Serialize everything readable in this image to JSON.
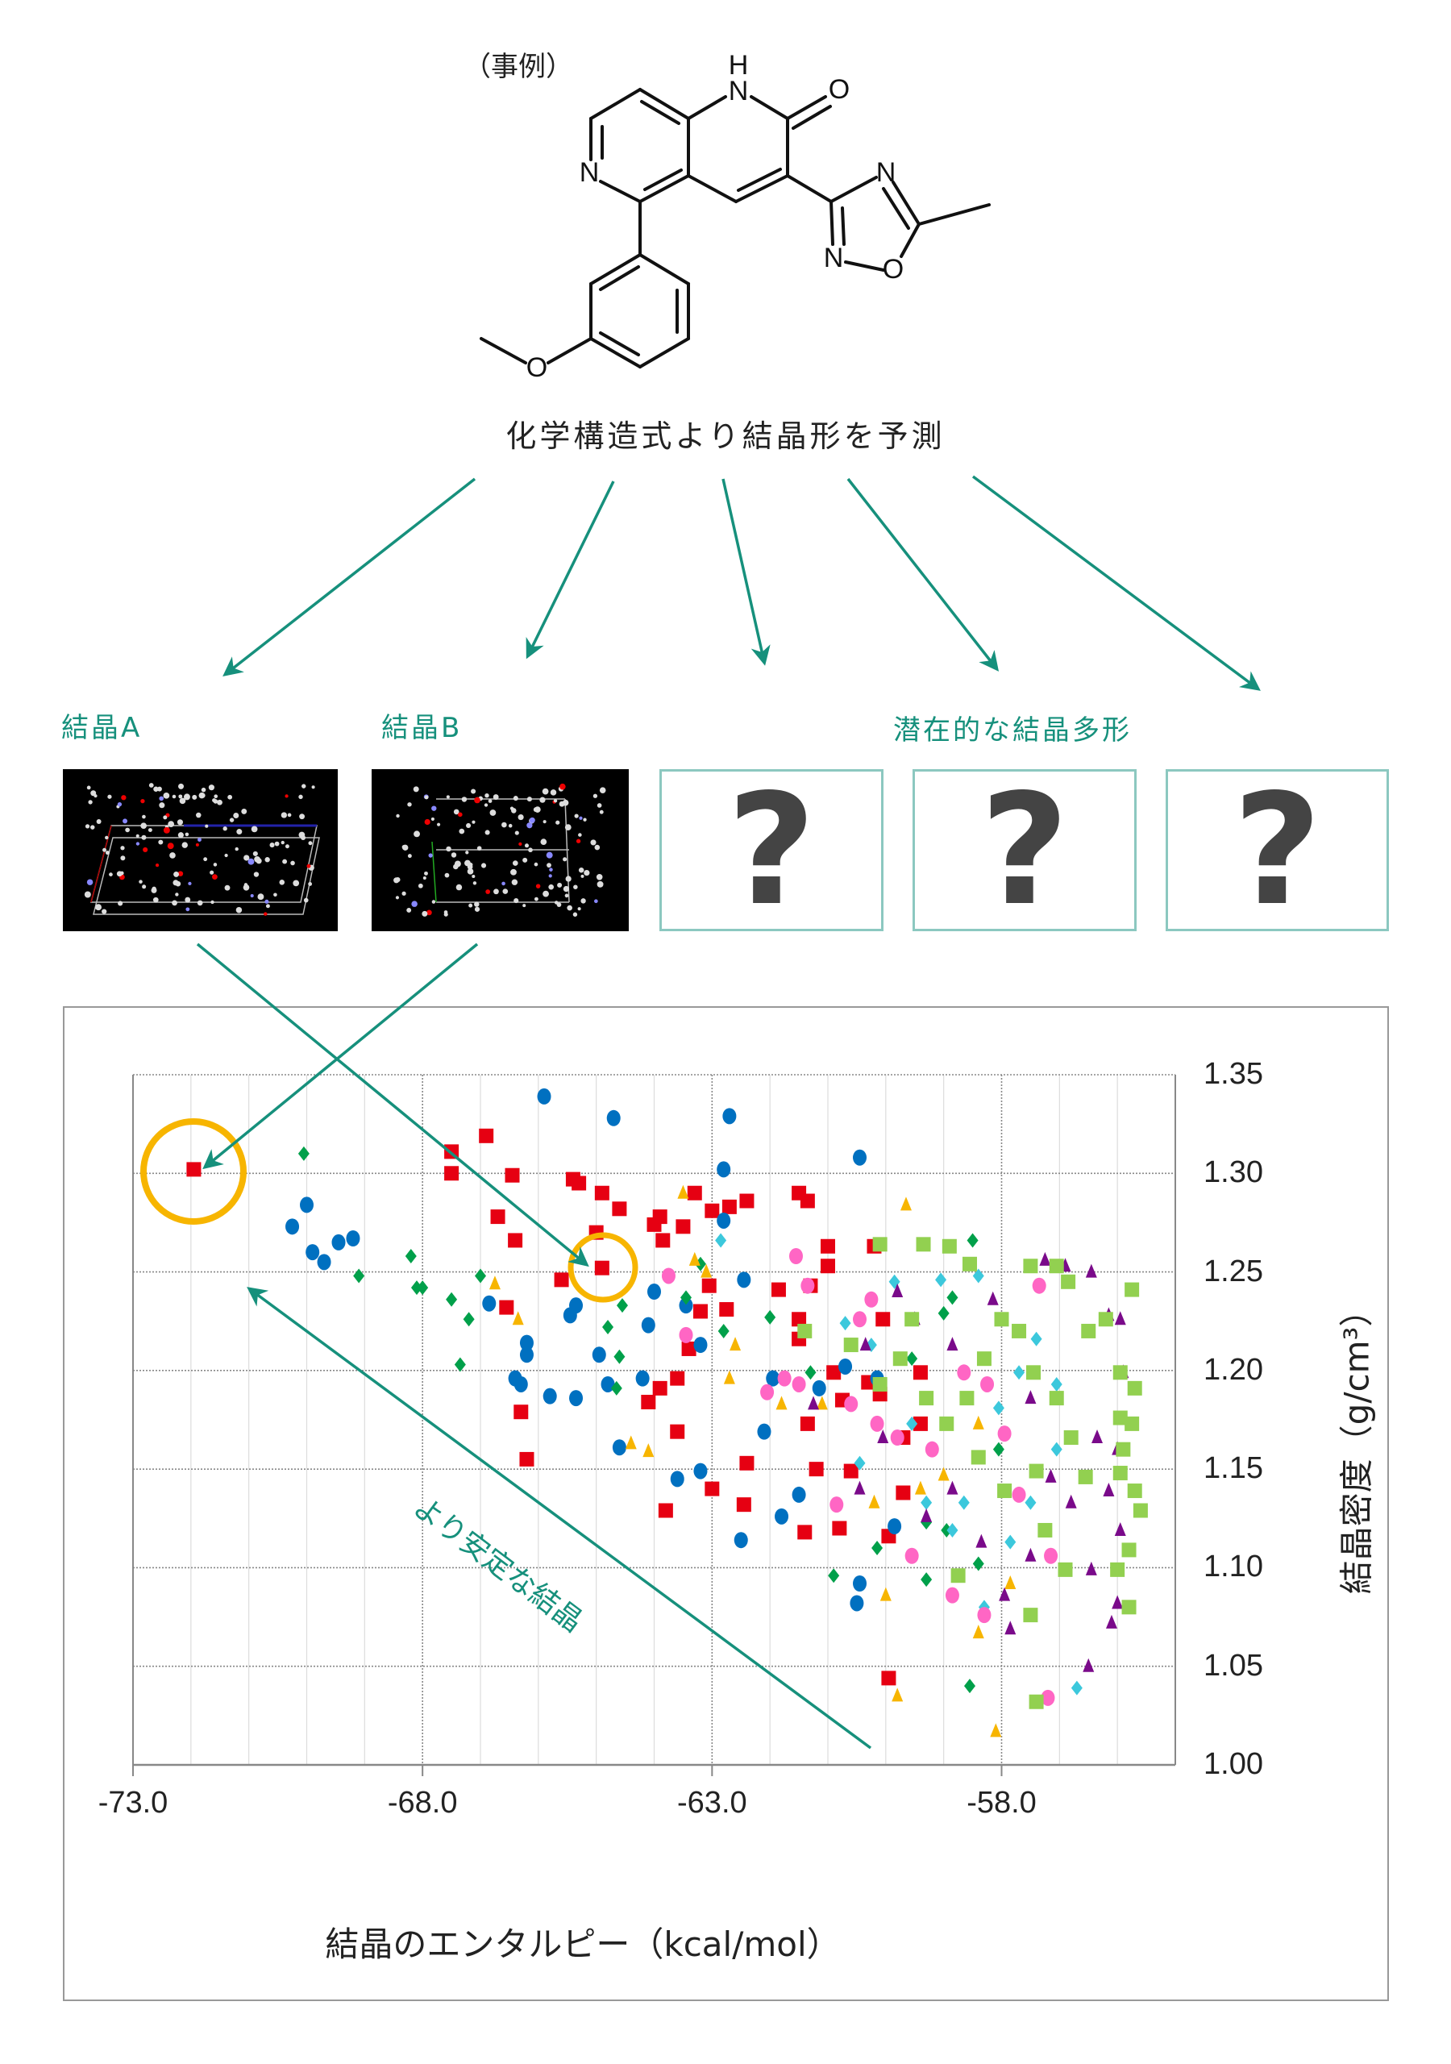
{
  "header": {
    "example_label": "（事例）",
    "caption": "化学構造式より結晶形を予測"
  },
  "structure": {
    "atoms": {
      "nh_h": "H",
      "nh_n": "N",
      "carbonyl_o": "O",
      "ring_n": "N",
      "methoxy_o": "O",
      "oxadiazole_n4": "N",
      "oxadiazole_n2": "N",
      "oxadiazole_o": "O"
    }
  },
  "crystals": {
    "crystal_a_label": "結晶A",
    "crystal_b_label": "結晶B",
    "potential_label": "潜在的な結晶多形",
    "unknown_mark": "?"
  },
  "colors": {
    "accent_teal": "#16907c",
    "highlight_circle": "#f7b500",
    "box_border": "#8cc8c0"
  },
  "annotation": {
    "stable_arrow_label": "より安定な結晶"
  },
  "chart_data": {
    "type": "scatter",
    "xlabel": "結晶のエンタルピー（kcal/mol）",
    "ylabel": "結晶密度（g/cm³）",
    "xlim": [
      -73.0,
      -55.0
    ],
    "ylim": [
      1.0,
      1.35
    ],
    "xticks": [
      "-73.0",
      "-68.0",
      "-63.0",
      "-58.0"
    ],
    "yticks": [
      "1.35",
      "1.30",
      "1.25",
      "1.20",
      "1.15",
      "1.10",
      "1.05",
      "1.00"
    ],
    "y_axis_side": "right",
    "grid": true,
    "legend": "none",
    "highlighted_points": [
      [
        -72.0,
        1.3
      ],
      [
        -64.9,
        1.252
      ]
    ],
    "series": [
      {
        "marker": "square",
        "color": "#e60012",
        "points": [
          [
            -71.95,
            1.302
          ],
          [
            -67.5,
            1.311
          ],
          [
            -66.9,
            1.319
          ],
          [
            -67.5,
            1.3
          ],
          [
            -66.45,
            1.299
          ],
          [
            -66.7,
            1.278
          ],
          [
            -66.4,
            1.266
          ],
          [
            -66.55,
            1.232
          ],
          [
            -65.4,
            1.297
          ],
          [
            -65.3,
            1.295
          ],
          [
            -64.9,
            1.29
          ],
          [
            -64.6,
            1.282
          ],
          [
            -64.9,
            1.252
          ],
          [
            -65.6,
            1.246
          ],
          [
            -65.0,
            1.27
          ],
          [
            -63.9,
            1.278
          ],
          [
            -63.85,
            1.266
          ],
          [
            -64.0,
            1.274
          ],
          [
            -63.5,
            1.273
          ],
          [
            -63.3,
            1.29
          ],
          [
            -63.0,
            1.281
          ],
          [
            -62.4,
            1.286
          ],
          [
            -62.7,
            1.283
          ],
          [
            -61.5,
            1.29
          ],
          [
            -61.35,
            1.286
          ],
          [
            -61.0,
            1.263
          ],
          [
            -61.0,
            1.253
          ],
          [
            -61.3,
            1.243
          ],
          [
            -63.05,
            1.243
          ],
          [
            -63.2,
            1.23
          ],
          [
            -62.75,
            1.231
          ],
          [
            -63.6,
            1.196
          ],
          [
            -63.9,
            1.191
          ],
          [
            -63.6,
            1.169
          ],
          [
            -63.4,
            1.211
          ],
          [
            -64.1,
            1.184
          ],
          [
            -66.3,
            1.179
          ],
          [
            -66.2,
            1.155
          ],
          [
            -63.8,
            1.129
          ],
          [
            -63.0,
            1.14
          ],
          [
            -62.45,
            1.132
          ],
          [
            -62.4,
            1.153
          ],
          [
            -61.85,
            1.241
          ],
          [
            -61.5,
            1.226
          ],
          [
            -61.5,
            1.216
          ],
          [
            -60.9,
            1.199
          ],
          [
            -60.6,
            1.149
          ],
          [
            -61.2,
            1.15
          ],
          [
            -61.4,
            1.118
          ],
          [
            -60.8,
            1.12
          ],
          [
            -60.1,
            1.188
          ],
          [
            -59.95,
            1.044
          ],
          [
            -59.7,
            1.138
          ],
          [
            -59.7,
            1.166
          ],
          [
            -60.3,
            1.194
          ],
          [
            -60.75,
            1.185
          ],
          [
            -60.05,
            1.226
          ],
          [
            -60.2,
            1.263
          ],
          [
            -59.4,
            1.173
          ],
          [
            -59.95,
            1.116
          ],
          [
            -59.4,
            1.199
          ],
          [
            -61.35,
            1.173
          ]
        ]
      },
      {
        "marker": "circle",
        "color": "#0070c0",
        "points": [
          [
            -65.9,
            1.339
          ],
          [
            -64.7,
            1.328
          ],
          [
            -62.7,
            1.329
          ],
          [
            -62.8,
            1.302
          ],
          [
            -60.45,
            1.308
          ],
          [
            -70.0,
            1.284
          ],
          [
            -70.25,
            1.273
          ],
          [
            -69.9,
            1.26
          ],
          [
            -69.7,
            1.255
          ],
          [
            -69.45,
            1.265
          ],
          [
            -69.2,
            1.267
          ],
          [
            -66.85,
            1.234
          ],
          [
            -66.2,
            1.214
          ],
          [
            -66.2,
            1.208
          ],
          [
            -66.4,
            1.196
          ],
          [
            -66.3,
            1.193
          ],
          [
            -65.8,
            1.187
          ],
          [
            -65.35,
            1.186
          ],
          [
            -64.8,
            1.193
          ],
          [
            -65.35,
            1.233
          ],
          [
            -65.45,
            1.228
          ],
          [
            -64.95,
            1.208
          ],
          [
            -64.1,
            1.223
          ],
          [
            -63.45,
            1.233
          ],
          [
            -63.2,
            1.213
          ],
          [
            -64.2,
            1.196
          ],
          [
            -64.6,
            1.161
          ],
          [
            -63.6,
            1.145
          ],
          [
            -63.2,
            1.149
          ],
          [
            -62.5,
            1.114
          ],
          [
            -62.1,
            1.169
          ],
          [
            -61.5,
            1.137
          ],
          [
            -61.8,
            1.126
          ],
          [
            -60.45,
            1.092
          ],
          [
            -60.5,
            1.082
          ],
          [
            -59.85,
            1.121
          ],
          [
            -60.15,
            1.196
          ],
          [
            -61.95,
            1.196
          ],
          [
            -64.0,
            1.24
          ],
          [
            -62.45,
            1.246
          ],
          [
            -62.8,
            1.276
          ],
          [
            -60.7,
            1.202
          ],
          [
            -61.15,
            1.191
          ]
        ]
      },
      {
        "marker": "diamond",
        "color": "#00a04a",
        "points": [
          [
            -70.05,
            1.31
          ],
          [
            -69.1,
            1.248
          ],
          [
            -68.2,
            1.258
          ],
          [
            -68.1,
            1.242
          ],
          [
            -68.0,
            1.242
          ],
          [
            -67.5,
            1.236
          ],
          [
            -67.2,
            1.226
          ],
          [
            -67.0,
            1.248
          ],
          [
            -67.35,
            1.203
          ],
          [
            -64.8,
            1.222
          ],
          [
            -64.55,
            1.233
          ],
          [
            -64.65,
            1.191
          ],
          [
            -64.6,
            1.207
          ],
          [
            -63.2,
            1.254
          ],
          [
            -63.45,
            1.237
          ],
          [
            -62.0,
            1.227
          ],
          [
            -60.9,
            1.096
          ],
          [
            -60.15,
            1.11
          ],
          [
            -59.3,
            1.094
          ],
          [
            -59.55,
            1.206
          ],
          [
            -59.0,
            1.229
          ],
          [
            -58.5,
            1.266
          ],
          [
            -58.85,
            1.237
          ],
          [
            -58.55,
            1.04
          ],
          [
            -58.05,
            1.16
          ],
          [
            -59.3,
            1.123
          ],
          [
            -61.3,
            1.199
          ],
          [
            -62.8,
            1.22
          ],
          [
            -58.95,
            1.119
          ],
          [
            -58.4,
            1.102
          ]
        ]
      },
      {
        "marker": "triangle",
        "color": "#f7b500",
        "points": [
          [
            -66.75,
            1.244
          ],
          [
            -66.35,
            1.226
          ],
          [
            -64.4,
            1.163
          ],
          [
            -64.1,
            1.159
          ],
          [
            -63.5,
            1.29
          ],
          [
            -63.3,
            1.256
          ],
          [
            -63.1,
            1.25
          ],
          [
            -62.7,
            1.196
          ],
          [
            -61.8,
            1.183
          ],
          [
            -59.65,
            1.284
          ],
          [
            -60.0,
            1.086
          ],
          [
            -59.8,
            1.035
          ],
          [
            -58.4,
            1.067
          ],
          [
            -58.1,
            1.017
          ],
          [
            -59.4,
            1.14
          ],
          [
            -59.0,
            1.147
          ],
          [
            -58.4,
            1.173
          ],
          [
            -61.1,
            1.183
          ],
          [
            -60.2,
            1.133
          ],
          [
            -57.85,
            1.092
          ],
          [
            -62.6,
            1.213
          ]
        ]
      },
      {
        "marker": "diamond",
        "color": "#3cc8dc",
        "points": [
          [
            -62.85,
            1.266
          ],
          [
            -60.7,
            1.224
          ],
          [
            -59.85,
            1.245
          ],
          [
            -59.05,
            1.246
          ],
          [
            -58.4,
            1.248
          ],
          [
            -57.7,
            1.199
          ],
          [
            -58.05,
            1.181
          ],
          [
            -58.85,
            1.119
          ],
          [
            -58.65,
            1.133
          ],
          [
            -57.85,
            1.113
          ],
          [
            -56.7,
            1.039
          ],
          [
            -57.05,
            1.16
          ],
          [
            -57.5,
            1.133
          ],
          [
            -60.25,
            1.213
          ],
          [
            -59.55,
            1.173
          ],
          [
            -57.05,
            1.193
          ],
          [
            -57.4,
            1.216
          ],
          [
            -60.45,
            1.153
          ],
          [
            -58.3,
            1.08
          ],
          [
            -59.3,
            1.133
          ]
        ]
      },
      {
        "marker": "circle",
        "color": "#ff66c4",
        "points": [
          [
            -61.55,
            1.258
          ],
          [
            -61.35,
            1.243
          ],
          [
            -62.05,
            1.189
          ],
          [
            -61.5,
            1.193
          ],
          [
            -61.75,
            1.196
          ],
          [
            -60.45,
            1.226
          ],
          [
            -60.25,
            1.236
          ],
          [
            -60.6,
            1.183
          ],
          [
            -60.15,
            1.173
          ],
          [
            -59.8,
            1.166
          ],
          [
            -59.55,
            1.106
          ],
          [
            -58.85,
            1.086
          ],
          [
            -58.65,
            1.199
          ],
          [
            -58.25,
            1.193
          ],
          [
            -57.95,
            1.168
          ],
          [
            -57.7,
            1.137
          ],
          [
            -57.15,
            1.106
          ],
          [
            -57.2,
            1.034
          ],
          [
            -57.35,
            1.243
          ],
          [
            -58.3,
            1.076
          ],
          [
            -59.2,
            1.16
          ],
          [
            -60.85,
            1.132
          ],
          [
            -63.75,
            1.248
          ],
          [
            -63.45,
            1.218
          ]
        ]
      },
      {
        "marker": "triangle",
        "color": "#7a0a8a",
        "points": [
          [
            -60.35,
            1.213
          ],
          [
            -59.8,
            1.24
          ],
          [
            -59.5,
            1.226
          ],
          [
            -58.85,
            1.213
          ],
          [
            -58.15,
            1.236
          ],
          [
            -57.25,
            1.256
          ],
          [
            -56.9,
            1.253
          ],
          [
            -56.45,
            1.25
          ],
          [
            -56.15,
            1.228
          ],
          [
            -55.95,
            1.226
          ],
          [
            -55.9,
            1.199
          ],
          [
            -56.35,
            1.166
          ],
          [
            -56.0,
            1.16
          ],
          [
            -56.15,
            1.139
          ],
          [
            -55.95,
            1.119
          ],
          [
            -56.45,
            1.099
          ],
          [
            -56.1,
            1.072
          ],
          [
            -56.0,
            1.082
          ],
          [
            -56.5,
            1.05
          ],
          [
            -56.8,
            1.133
          ],
          [
            -57.15,
            1.146
          ],
          [
            -57.5,
            1.106
          ],
          [
            -57.85,
            1.069
          ],
          [
            -57.95,
            1.086
          ],
          [
            -58.35,
            1.113
          ],
          [
            -59.3,
            1.126
          ],
          [
            -58.85,
            1.14
          ],
          [
            -60.45,
            1.14
          ],
          [
            -61.25,
            1.183
          ],
          [
            -60.05,
            1.166
          ],
          [
            -57.5,
            1.186
          ]
        ]
      },
      {
        "marker": "square",
        "color": "#92d050",
        "points": [
          [
            -60.1,
            1.264
          ],
          [
            -59.35,
            1.264
          ],
          [
            -58.9,
            1.263
          ],
          [
            -58.55,
            1.254
          ],
          [
            -57.5,
            1.253
          ],
          [
            -57.05,
            1.253
          ],
          [
            -56.85,
            1.245
          ],
          [
            -55.75,
            1.241
          ],
          [
            -56.2,
            1.226
          ],
          [
            -56.5,
            1.22
          ],
          [
            -55.95,
            1.199
          ],
          [
            -55.7,
            1.191
          ],
          [
            -55.95,
            1.176
          ],
          [
            -55.75,
            1.173
          ],
          [
            -55.9,
            1.16
          ],
          [
            -55.95,
            1.148
          ],
          [
            -55.7,
            1.139
          ],
          [
            -55.6,
            1.129
          ],
          [
            -55.8,
            1.109
          ],
          [
            -56.0,
            1.099
          ],
          [
            -55.8,
            1.08
          ],
          [
            -56.55,
            1.146
          ],
          [
            -56.8,
            1.166
          ],
          [
            -57.05,
            1.186
          ],
          [
            -57.45,
            1.199
          ],
          [
            -57.7,
            1.22
          ],
          [
            -58.0,
            1.226
          ],
          [
            -58.3,
            1.206
          ],
          [
            -58.6,
            1.186
          ],
          [
            -58.95,
            1.173
          ],
          [
            -58.4,
            1.156
          ],
          [
            -57.95,
            1.139
          ],
          [
            -57.4,
            1.149
          ],
          [
            -57.25,
            1.119
          ],
          [
            -57.5,
            1.076
          ],
          [
            -57.4,
            1.032
          ],
          [
            -59.3,
            1.186
          ],
          [
            -59.75,
            1.206
          ],
          [
            -60.1,
            1.193
          ],
          [
            -59.55,
            1.226
          ],
          [
            -61.4,
            1.22
          ],
          [
            -60.6,
            1.213
          ],
          [
            -58.75,
            1.096
          ],
          [
            -56.9,
            1.099
          ]
        ]
      }
    ]
  }
}
